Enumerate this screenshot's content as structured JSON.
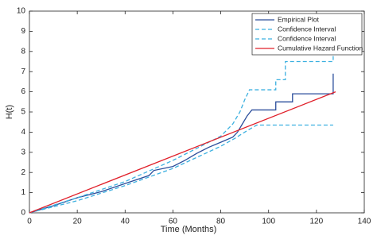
{
  "chart_data": {
    "type": "line",
    "xlabel": "Time (Months)",
    "ylabel": "H(t)",
    "xlim": [
      0,
      140
    ],
    "xticks": [
      0,
      20,
      40,
      60,
      80,
      100,
      120,
      140
    ],
    "ylim": [
      0,
      10
    ],
    "yticks": [
      0,
      1,
      2,
      3,
      4,
      5,
      6,
      7,
      8,
      9,
      10
    ],
    "legend": "upper right",
    "series": [
      {
        "name": "Empirical Plot",
        "color": "#2a4d9b",
        "dashed": false,
        "x": [
          0,
          10,
          20,
          30,
          40,
          50,
          52,
          60,
          65,
          70,
          75,
          80,
          85,
          87,
          88,
          89,
          90,
          91,
          92,
          93,
          103,
          103,
          110,
          110,
          127,
          127
        ],
        "values": [
          0,
          0.35,
          0.75,
          1.05,
          1.45,
          1.85,
          2.1,
          2.3,
          2.6,
          2.95,
          3.25,
          3.5,
          3.75,
          4.0,
          4.2,
          4.4,
          4.6,
          4.8,
          4.95,
          5.1,
          5.1,
          5.5,
          5.5,
          5.9,
          5.9,
          6.9
        ]
      },
      {
        "name": "Confidence Interval",
        "color": "#3bb0e0",
        "dashed": true,
        "x": [
          0,
          20,
          40,
          60,
          70,
          80,
          85,
          88,
          90,
          92,
          103,
          103,
          107,
          107,
          127,
          127
        ],
        "values": [
          0,
          0.75,
          1.55,
          2.6,
          3.2,
          3.8,
          4.4,
          5.0,
          5.6,
          6.1,
          6.1,
          6.6,
          6.6,
          7.5,
          7.5,
          8.3
        ]
      },
      {
        "name": "Confidence Interval",
        "color": "#3bb0e0",
        "dashed": true,
        "x": [
          0,
          20,
          40,
          60,
          70,
          80,
          86,
          90,
          95,
          127
        ],
        "values": [
          0,
          0.6,
          1.35,
          2.2,
          2.75,
          3.3,
          3.7,
          4.0,
          4.35,
          4.35
        ]
      },
      {
        "name": "Cumulative Hazard Function",
        "color": "#e0202a",
        "dashed": false,
        "x": [
          0,
          128
        ],
        "values": [
          0,
          6.0
        ]
      }
    ]
  }
}
